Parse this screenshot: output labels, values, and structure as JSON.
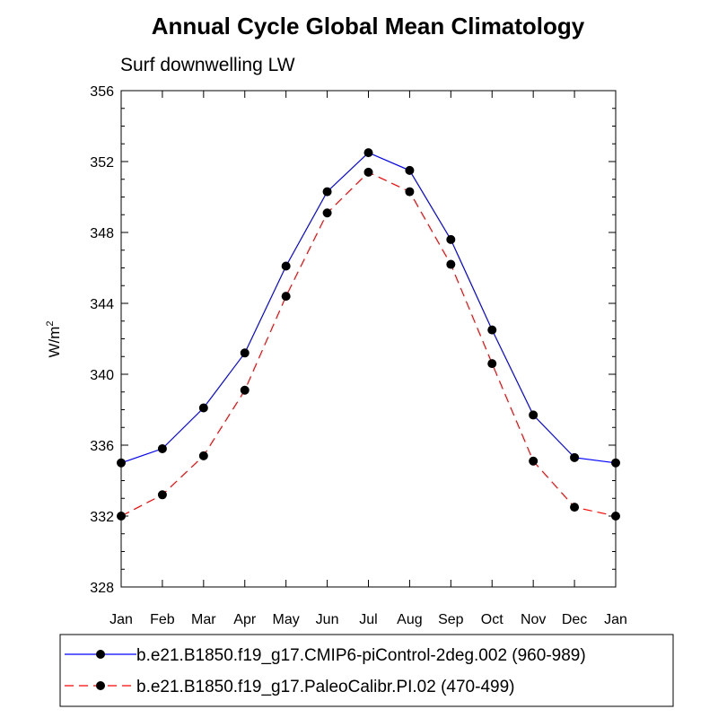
{
  "chart_data": {
    "type": "line",
    "title": "Annual Cycle Global Mean Climatology",
    "subtitle": "Surf downwelling LW",
    "xlabel": "",
    "ylabel": "W/m",
    "ylabel_superscript": "2",
    "categories": [
      "Jan",
      "Feb",
      "Mar",
      "Apr",
      "May",
      "Jun",
      "Jul",
      "Aug",
      "Sep",
      "Oct",
      "Nov",
      "Dec",
      "Jan"
    ],
    "ylim": [
      328,
      356
    ],
    "yticks": [
      328,
      332,
      336,
      340,
      344,
      348,
      352,
      356
    ],
    "ytick_labels": [
      "328",
      "332",
      "336",
      "340",
      "344",
      "348",
      "352",
      "356"
    ],
    "legend_position": "bottom",
    "series": [
      {
        "name": "b.e21.B1850.f19_g17.CMIP6-piControl-2deg.002 (960-989)",
        "color": "#0000ff",
        "dash": "solid",
        "values": [
          335.0,
          335.8,
          338.1,
          341.2,
          346.1,
          350.3,
          352.5,
          351.5,
          347.6,
          342.5,
          337.7,
          335.3,
          335.0
        ]
      },
      {
        "name": "b.e21.B1850.f19_g17.PaleoCalibr.PI.02 (470-499)",
        "color": "#ff0000",
        "dash": "dashed",
        "values": [
          332.0,
          333.2,
          335.4,
          339.1,
          344.4,
          349.1,
          351.4,
          350.3,
          346.2,
          340.6,
          335.1,
          332.5,
          332.0
        ]
      }
    ]
  }
}
